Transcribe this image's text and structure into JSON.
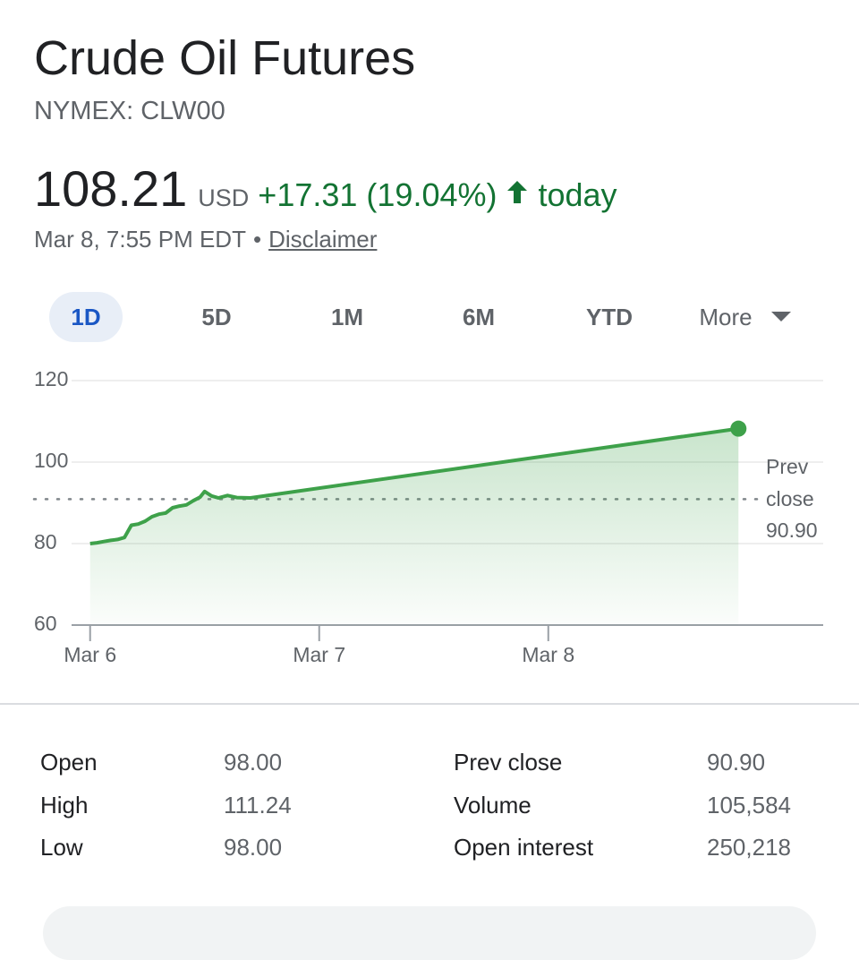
{
  "header": {
    "title": "Crude Oil Futures",
    "subtitle": "NYMEX: CLW00",
    "price": "108.21",
    "currency": "USD",
    "change": "+17.31 (19.04%)",
    "period": "today",
    "timestamp": "Mar 8, 7:55 PM EDT",
    "separator": "•",
    "disclaimer": "Disclaimer"
  },
  "tabs": {
    "items": [
      "1D",
      "5D",
      "1M",
      "6M",
      "YTD",
      "More"
    ],
    "selected_index": 0
  },
  "chart_data": {
    "type": "line",
    "x": [
      0,
      0.03,
      0.06,
      0.09,
      0.12,
      0.15,
      0.18,
      0.21,
      0.24,
      0.27,
      0.3,
      0.33,
      0.36,
      0.39,
      0.42,
      0.45,
      0.48,
      0.5,
      0.53,
      0.56,
      0.6,
      0.64,
      0.7,
      2.83
    ],
    "values": [
      80,
      80.2,
      80.5,
      80.8,
      81,
      81.5,
      84.5,
      84.8,
      85.5,
      86.6,
      87.2,
      87.5,
      88.8,
      89.2,
      89.5,
      90.5,
      91.4,
      92.8,
      91.7,
      91.2,
      91.8,
      91.3,
      91.2,
      108.21
    ],
    "color": "#3ea14a",
    "xlim": [
      -0.12,
      3.2
    ],
    "xticks": [
      {
        "value": 0,
        "label": "Mar 6"
      },
      {
        "value": 1,
        "label": "Mar 7"
      },
      {
        "value": 2,
        "label": "Mar 8"
      }
    ],
    "ylim": [
      60,
      120
    ],
    "yticks": [
      60,
      80,
      100,
      120
    ],
    "grid": true,
    "reference_line": {
      "label": "Prev close",
      "value": 90.9,
      "value_label": "90.90"
    }
  },
  "stats": {
    "rows": [
      [
        "Open",
        "98.00",
        "Prev close",
        "90.90"
      ],
      [
        "High",
        "111.24",
        "Volume",
        "105,584"
      ],
      [
        "Low",
        "98.00",
        "Open interest",
        "250,218"
      ]
    ]
  }
}
